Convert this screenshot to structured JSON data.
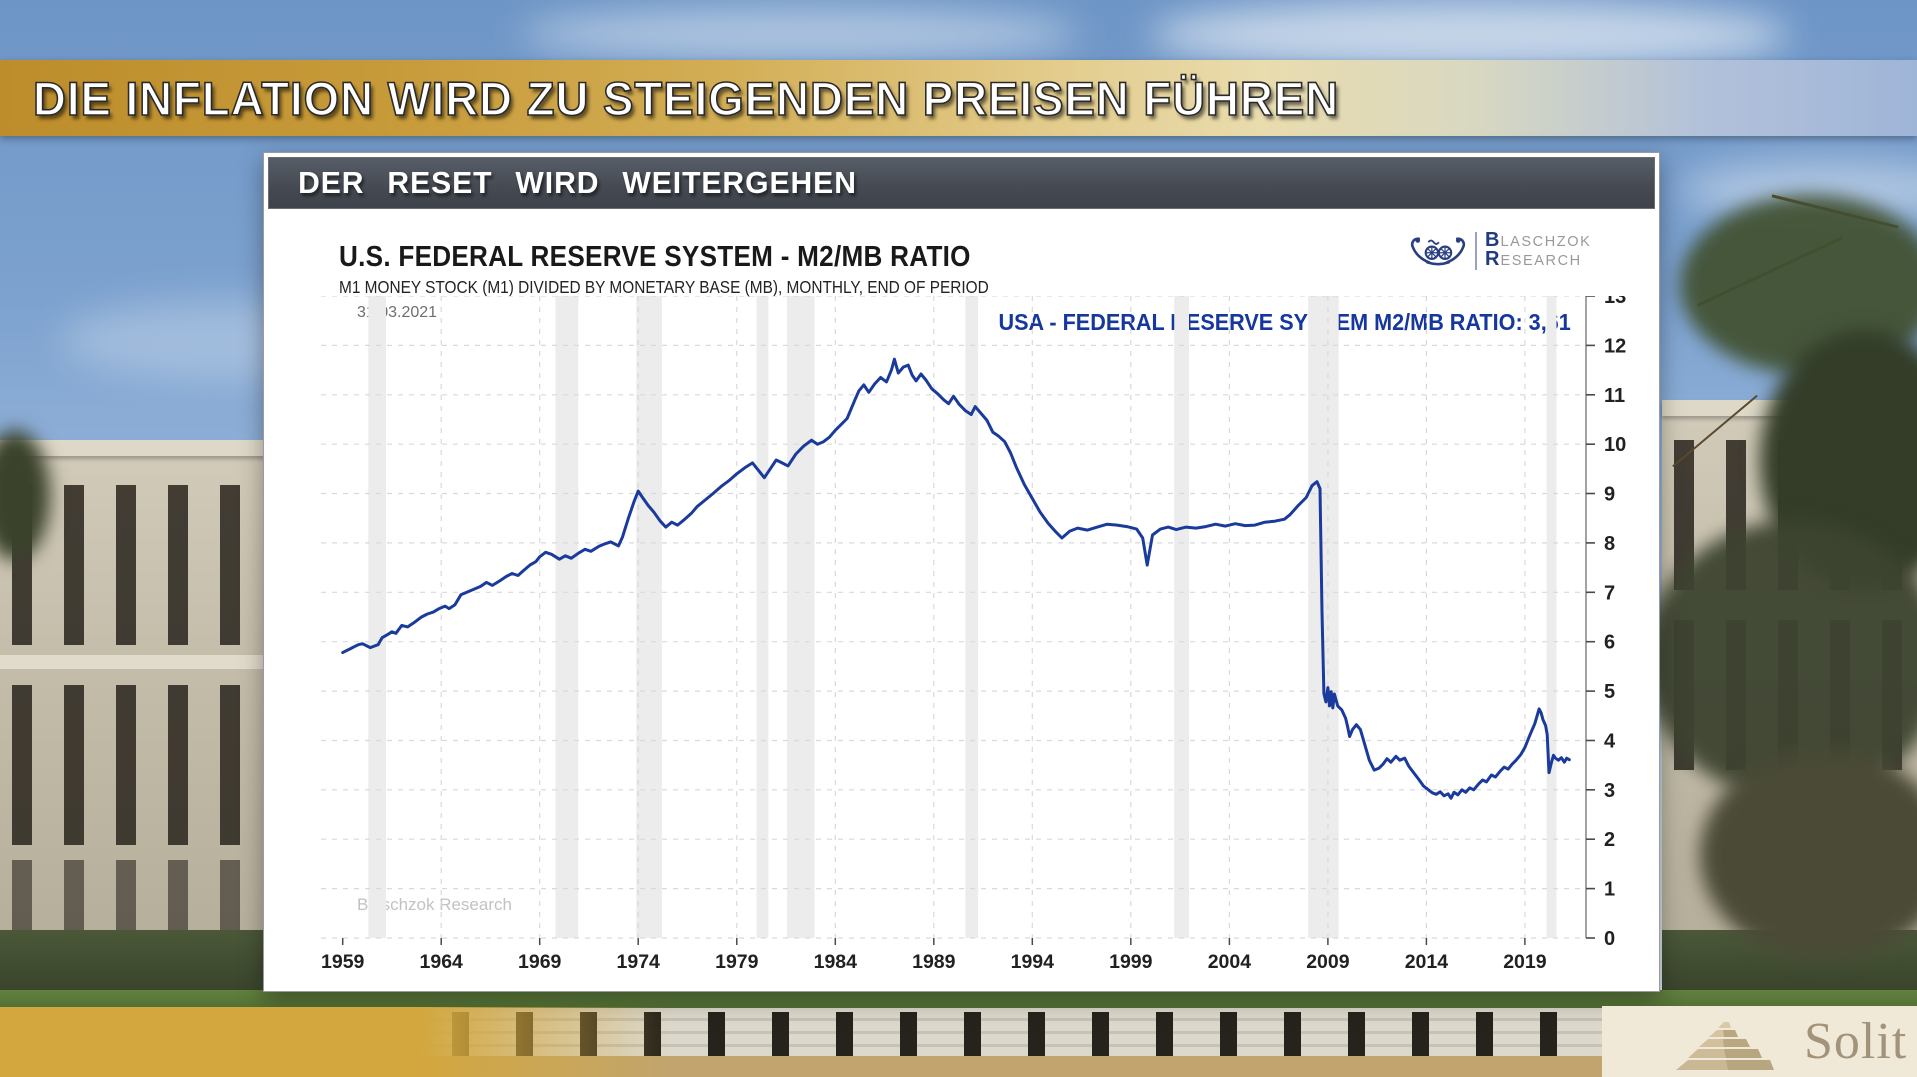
{
  "banner": {
    "title": "DIE INFLATION WIRD ZU STEIGENDEN PREISEN FÜHREN"
  },
  "panel": {
    "header": "DER RESET WIRD WEITERGEHEN",
    "chart_title": "U.S. FEDERAL RESERVE SYSTEM - M2/MB RATIO",
    "chart_subtitle": "M1 MONEY STOCK (M1) DIVIDED BY MONETARY BASE (MB), MONTHLY, END OF PERIOD",
    "date_label": "31.03.2021",
    "series_label": "USA - FEDERAL RESERVE SYSTEM M2/MB RATIO: 3,61",
    "watermark": "Blaschzok Research",
    "logo": {
      "l1_initial": "B",
      "l1_rest": "LASCHZOK",
      "l2_initial": "R",
      "l2_rest": "ESEARCH"
    }
  },
  "footer": {
    "brand": "Solit"
  },
  "colors": {
    "line": "#1a3a9c",
    "legend": "#15379e",
    "band": "#ececec",
    "grid": "#d9d9d9",
    "axis": "#8c8c8c",
    "tick": "#4a4a4a",
    "tick_label": "#212121",
    "gold": "#d3a73e",
    "header_bar": "#454a52"
  },
  "chart_data": {
    "type": "line",
    "title": "U.S. FEDERAL RESERVE SYSTEM - M2/MB RATIO",
    "subtitle": "M1 MONEY STOCK (M1) DIVIDED BY MONETARY BASE (MB), MONTHLY, END OF PERIOD",
    "as_of_date": "31.03.2021",
    "last_value_label": "3,61",
    "xlabel": "",
    "ylabel": "",
    "xlim": [
      1957.9,
      2022.1
    ],
    "ylim": [
      0,
      13
    ],
    "x_ticks": [
      1959,
      1964,
      1969,
      1974,
      1979,
      1984,
      1989,
      1994,
      1999,
      2004,
      2009,
      2014,
      2019
    ],
    "y_ticks": [
      0,
      1,
      2,
      3,
      4,
      5,
      6,
      7,
      8,
      9,
      10,
      11,
      12,
      13
    ],
    "grid": true,
    "legend_position": "top-right",
    "recession_bands": [
      [
        1960.3,
        1961.2
      ],
      [
        1969.8,
        1970.95
      ],
      [
        1973.9,
        1975.2
      ],
      [
        1980.0,
        1980.6
      ],
      [
        1981.55,
        1982.95
      ],
      [
        1990.6,
        1991.25
      ],
      [
        2001.2,
        2001.95
      ],
      [
        2008.0,
        2009.55
      ],
      [
        2020.1,
        2020.6
      ]
    ],
    "series": [
      {
        "name": "USA - Federal Reserve System M2/MB Ratio",
        "points": [
          [
            1959.0,
            5.78
          ],
          [
            1959.2,
            5.82
          ],
          [
            1959.4,
            5.86
          ],
          [
            1959.6,
            5.9
          ],
          [
            1959.8,
            5.94
          ],
          [
            1960.0,
            5.96
          ],
          [
            1960.2,
            5.92
          ],
          [
            1960.4,
            5.88
          ],
          [
            1960.6,
            5.91
          ],
          [
            1960.8,
            5.94
          ],
          [
            1961.0,
            6.08
          ],
          [
            1961.3,
            6.15
          ],
          [
            1961.5,
            6.2
          ],
          [
            1961.7,
            6.17
          ],
          [
            1962.0,
            6.33
          ],
          [
            1962.3,
            6.3
          ],
          [
            1962.6,
            6.38
          ],
          [
            1963.0,
            6.5
          ],
          [
            1963.3,
            6.56
          ],
          [
            1963.6,
            6.6
          ],
          [
            1963.9,
            6.67
          ],
          [
            1964.2,
            6.72
          ],
          [
            1964.4,
            6.67
          ],
          [
            1964.7,
            6.75
          ],
          [
            1965.0,
            6.95
          ],
          [
            1965.3,
            7.0
          ],
          [
            1965.6,
            7.05
          ],
          [
            1966.0,
            7.12
          ],
          [
            1966.3,
            7.2
          ],
          [
            1966.6,
            7.14
          ],
          [
            1967.0,
            7.24
          ],
          [
            1967.3,
            7.32
          ],
          [
            1967.6,
            7.38
          ],
          [
            1967.9,
            7.34
          ],
          [
            1968.2,
            7.45
          ],
          [
            1968.5,
            7.55
          ],
          [
            1968.8,
            7.62
          ],
          [
            1969.0,
            7.72
          ],
          [
            1969.3,
            7.81
          ],
          [
            1969.6,
            7.77
          ],
          [
            1970.0,
            7.67
          ],
          [
            1970.3,
            7.74
          ],
          [
            1970.6,
            7.69
          ],
          [
            1971.0,
            7.8
          ],
          [
            1971.3,
            7.87
          ],
          [
            1971.6,
            7.83
          ],
          [
            1972.0,
            7.93
          ],
          [
            1972.3,
            7.98
          ],
          [
            1972.6,
            8.02
          ],
          [
            1973.0,
            7.94
          ],
          [
            1973.2,
            8.12
          ],
          [
            1973.5,
            8.5
          ],
          [
            1973.8,
            8.85
          ],
          [
            1974.0,
            9.05
          ],
          [
            1974.2,
            8.93
          ],
          [
            1974.5,
            8.76
          ],
          [
            1974.8,
            8.62
          ],
          [
            1975.1,
            8.45
          ],
          [
            1975.4,
            8.32
          ],
          [
            1975.7,
            8.42
          ],
          [
            1976.0,
            8.36
          ],
          [
            1976.3,
            8.46
          ],
          [
            1976.7,
            8.6
          ],
          [
            1977.0,
            8.74
          ],
          [
            1977.4,
            8.87
          ],
          [
            1977.8,
            9.0
          ],
          [
            1978.2,
            9.14
          ],
          [
            1978.6,
            9.26
          ],
          [
            1979.0,
            9.4
          ],
          [
            1979.4,
            9.52
          ],
          [
            1979.8,
            9.62
          ],
          [
            1980.1,
            9.47
          ],
          [
            1980.4,
            9.32
          ],
          [
            1980.7,
            9.5
          ],
          [
            1981.0,
            9.68
          ],
          [
            1981.3,
            9.62
          ],
          [
            1981.6,
            9.56
          ],
          [
            1982.0,
            9.8
          ],
          [
            1982.4,
            9.96
          ],
          [
            1982.8,
            10.08
          ],
          [
            1983.1,
            10.0
          ],
          [
            1983.4,
            10.05
          ],
          [
            1983.7,
            10.14
          ],
          [
            1984.0,
            10.28
          ],
          [
            1984.3,
            10.4
          ],
          [
            1984.6,
            10.52
          ],
          [
            1985.0,
            10.9
          ],
          [
            1985.2,
            11.08
          ],
          [
            1985.45,
            11.2
          ],
          [
            1985.7,
            11.05
          ],
          [
            1986.0,
            11.22
          ],
          [
            1986.3,
            11.35
          ],
          [
            1986.6,
            11.26
          ],
          [
            1986.85,
            11.5
          ],
          [
            1987.0,
            11.72
          ],
          [
            1987.2,
            11.44
          ],
          [
            1987.45,
            11.56
          ],
          [
            1987.7,
            11.6
          ],
          [
            1987.9,
            11.4
          ],
          [
            1988.1,
            11.28
          ],
          [
            1988.35,
            11.42
          ],
          [
            1988.6,
            11.3
          ],
          [
            1988.9,
            11.12
          ],
          [
            1989.2,
            11.02
          ],
          [
            1989.5,
            10.9
          ],
          [
            1989.75,
            10.82
          ],
          [
            1990.0,
            10.97
          ],
          [
            1990.3,
            10.8
          ],
          [
            1990.6,
            10.68
          ],
          [
            1990.9,
            10.6
          ],
          [
            1991.1,
            10.76
          ],
          [
            1991.4,
            10.62
          ],
          [
            1991.7,
            10.48
          ],
          [
            1992.0,
            10.24
          ],
          [
            1992.3,
            10.16
          ],
          [
            1992.6,
            10.05
          ],
          [
            1992.9,
            9.82
          ],
          [
            1993.2,
            9.52
          ],
          [
            1993.6,
            9.18
          ],
          [
            1994.0,
            8.9
          ],
          [
            1994.4,
            8.62
          ],
          [
            1994.8,
            8.4
          ],
          [
            1995.2,
            8.22
          ],
          [
            1995.5,
            8.1
          ],
          [
            1995.9,
            8.24
          ],
          [
            1996.3,
            8.3
          ],
          [
            1996.8,
            8.26
          ],
          [
            1997.3,
            8.32
          ],
          [
            1997.8,
            8.38
          ],
          [
            1998.3,
            8.36
          ],
          [
            1998.8,
            8.33
          ],
          [
            1999.3,
            8.28
          ],
          [
            1999.6,
            8.1
          ],
          [
            1999.83,
            7.55
          ],
          [
            2000.1,
            8.16
          ],
          [
            2000.5,
            8.28
          ],
          [
            2000.9,
            8.32
          ],
          [
            2001.3,
            8.27
          ],
          [
            2001.8,
            8.32
          ],
          [
            2002.3,
            8.3
          ],
          [
            2002.8,
            8.33
          ],
          [
            2003.3,
            8.38
          ],
          [
            2003.8,
            8.34
          ],
          [
            2004.3,
            8.39
          ],
          [
            2004.8,
            8.35
          ],
          [
            2005.3,
            8.36
          ],
          [
            2005.8,
            8.42
          ],
          [
            2006.3,
            8.44
          ],
          [
            2006.8,
            8.48
          ],
          [
            2007.1,
            8.58
          ],
          [
            2007.5,
            8.76
          ],
          [
            2007.9,
            8.92
          ],
          [
            2008.2,
            9.16
          ],
          [
            2008.45,
            9.24
          ],
          [
            2008.6,
            9.1
          ],
          [
            2008.7,
            6.6
          ],
          [
            2008.8,
            4.95
          ],
          [
            2008.9,
            4.78
          ],
          [
            2009.0,
            5.07
          ],
          [
            2009.08,
            4.7
          ],
          [
            2009.17,
            4.99
          ],
          [
            2009.25,
            4.66
          ],
          [
            2009.33,
            4.94
          ],
          [
            2009.5,
            4.7
          ],
          [
            2009.7,
            4.62
          ],
          [
            2009.9,
            4.45
          ],
          [
            2010.0,
            4.28
          ],
          [
            2010.1,
            4.08
          ],
          [
            2010.25,
            4.22
          ],
          [
            2010.45,
            4.32
          ],
          [
            2010.65,
            4.22
          ],
          [
            2010.85,
            3.95
          ],
          [
            2011.1,
            3.6
          ],
          [
            2011.35,
            3.4
          ],
          [
            2011.6,
            3.44
          ],
          [
            2011.8,
            3.52
          ],
          [
            2012.0,
            3.63
          ],
          [
            2012.2,
            3.56
          ],
          [
            2012.45,
            3.68
          ],
          [
            2012.65,
            3.6
          ],
          [
            2012.9,
            3.64
          ],
          [
            2013.1,
            3.48
          ],
          [
            2013.35,
            3.35
          ],
          [
            2013.6,
            3.22
          ],
          [
            2013.85,
            3.08
          ],
          [
            2014.1,
            3.0
          ],
          [
            2014.3,
            2.94
          ],
          [
            2014.5,
            2.91
          ],
          [
            2014.7,
            2.96
          ],
          [
            2014.9,
            2.88
          ],
          [
            2015.1,
            2.92
          ],
          [
            2015.25,
            2.83
          ],
          [
            2015.4,
            2.95
          ],
          [
            2015.6,
            2.9
          ],
          [
            2015.8,
            3.0
          ],
          [
            2016.0,
            2.95
          ],
          [
            2016.2,
            3.04
          ],
          [
            2016.4,
            3.0
          ],
          [
            2016.65,
            3.12
          ],
          [
            2016.85,
            3.2
          ],
          [
            2017.05,
            3.16
          ],
          [
            2017.3,
            3.3
          ],
          [
            2017.5,
            3.26
          ],
          [
            2017.75,
            3.38
          ],
          [
            2017.95,
            3.46
          ],
          [
            2018.15,
            3.42
          ],
          [
            2018.35,
            3.52
          ],
          [
            2018.55,
            3.6
          ],
          [
            2018.8,
            3.72
          ],
          [
            2019.0,
            3.86
          ],
          [
            2019.2,
            4.06
          ],
          [
            2019.35,
            4.2
          ],
          [
            2019.5,
            4.34
          ],
          [
            2019.62,
            4.5
          ],
          [
            2019.72,
            4.64
          ],
          [
            2019.82,
            4.56
          ],
          [
            2019.92,
            4.42
          ],
          [
            2020.05,
            4.3
          ],
          [
            2020.13,
            4.12
          ],
          [
            2020.22,
            3.35
          ],
          [
            2020.35,
            3.56
          ],
          [
            2020.45,
            3.7
          ],
          [
            2020.55,
            3.64
          ],
          [
            2020.7,
            3.6
          ],
          [
            2020.85,
            3.65
          ],
          [
            2021.0,
            3.56
          ],
          [
            2021.12,
            3.64
          ],
          [
            2021.25,
            3.61
          ]
        ]
      }
    ]
  }
}
